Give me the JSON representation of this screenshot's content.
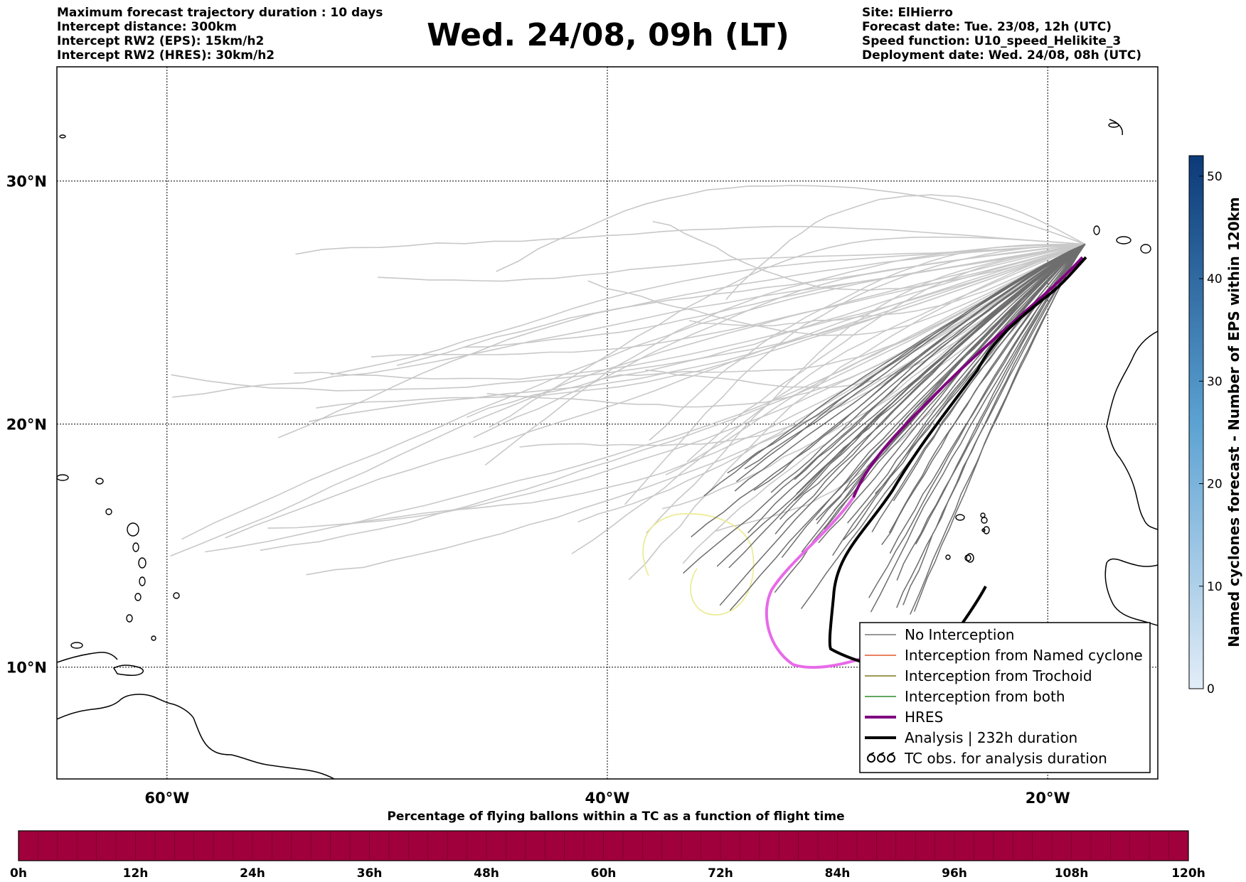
{
  "header": {
    "title": "Wed. 24/08, 09h (LT)",
    "left_lines": [
      "Maximum forecast trajectory duration : 10 days",
      "Intercept distance: 300km",
      "Intercept RW2 (EPS):  15km/h2",
      "Intercept RW2 (HRES): 30km/h2"
    ],
    "right_lines": [
      "Site: ElHierro",
      "Forecast date: Tue. 23/08, 12h (UTC)",
      "Speed function: U10_speed_Helikite_3",
      "Deployment date: Wed. 24/08, 08h (UTC)"
    ]
  },
  "map": {
    "lat_labels": [
      "30°N",
      "20°N",
      "10°N"
    ],
    "lat_values": [
      30,
      20,
      10
    ],
    "lon_labels": [
      "60°W",
      "40°W",
      "20°W"
    ],
    "lon_values": [
      -60,
      -40,
      -20
    ],
    "extent": {
      "lon_min": -65,
      "lon_max": -15,
      "lat_min": 5.4,
      "lat_max": 34.7
    },
    "release_site": {
      "lon": -18.3,
      "lat": 27.4
    }
  },
  "legend": {
    "items": [
      {
        "label": "No Interception",
        "color": "#777777",
        "style": "thin"
      },
      {
        "label": "Interception from Named cyclone",
        "color": "#e2562c",
        "style": "thin"
      },
      {
        "label": "Interception from Trochoid",
        "color": "#7a7a1f",
        "style": "thin"
      },
      {
        "label": "Interception from both",
        "color": "#2e8b2e",
        "style": "thin"
      },
      {
        "label": "HRES",
        "color": "#800080",
        "style": "thick"
      },
      {
        "label": "Analysis | 232h duration",
        "color": "#000000",
        "style": "thick"
      },
      {
        "label": "TC obs. for analysis duration",
        "color": "#000000",
        "style": "cyclone-symbols"
      }
    ]
  },
  "colorbar": {
    "title": "Named cyclones forecast - Number of EPS within 120km",
    "ticks": [
      "0",
      "10",
      "20",
      "30",
      "40",
      "50"
    ],
    "tick_values": [
      0,
      10,
      20,
      30,
      40,
      50
    ],
    "max": 52,
    "color_low": "#e3edf8",
    "color_high": "#0b3a78"
  },
  "time_bar": {
    "title": "Percentage of flying ballons within a TC as a function of flight time",
    "ticks": [
      "0h",
      "12h",
      "24h",
      "36h",
      "48h",
      "60h",
      "72h",
      "84h",
      "96h",
      "108h",
      "120h"
    ],
    "fill_color": "#a0003c"
  },
  "trajectory_colors": {
    "no_interception": "#6e6e6e",
    "faded": "#c8c8c8",
    "hres_early": "#800080",
    "hres_late": "#e86ae8",
    "analysis": "#000000",
    "trochoid_circle": "#ecec9a"
  }
}
